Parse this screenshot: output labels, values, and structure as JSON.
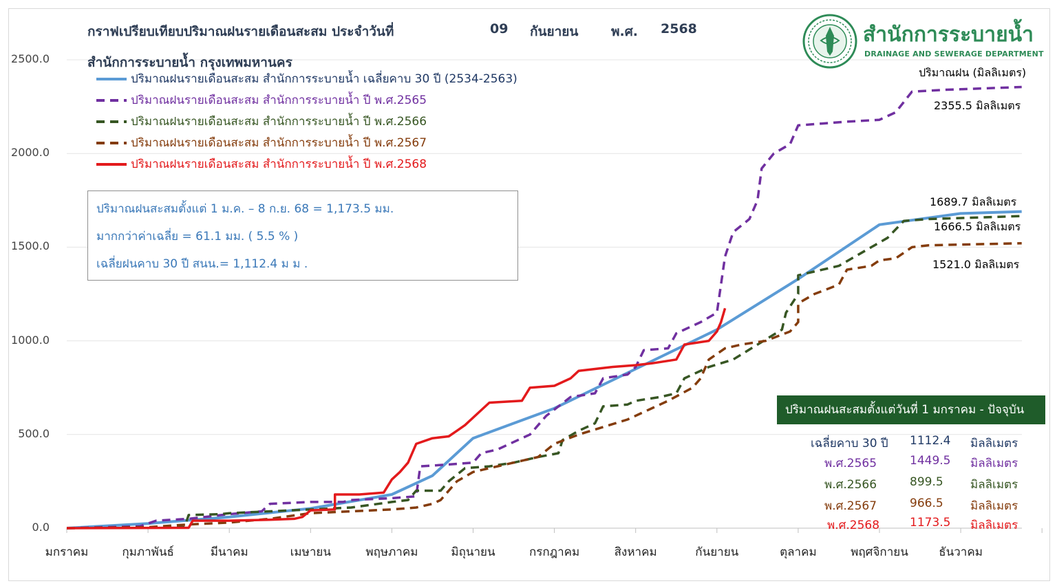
{
  "title": {
    "line1_prefix": "กราฟเปรียบเทียบปริมาณฝนรายเดือนสะสม ประจำวันที่",
    "day": "09",
    "month": "กันยายน",
    "era": "พ.ศ.",
    "year": "2568",
    "line2": "สำนักการระบายน้ำ กรุงเทพมหานคร"
  },
  "logo": {
    "name_th": "สำนักการระบายน้ำ",
    "name_en": "DRAINAGE AND SEWERAGE DEPARTMENT",
    "icon": "dds-seal-icon"
  },
  "unit_label": "ปริมาณฝน (มิลลิเมตร)",
  "legend": [
    {
      "label": "ปริมาณฝนรายเดือนสะสม สำนักการระบายน้ำ เฉลี่ยคาบ 30 ปี (2534-2563)",
      "color": "#5b9bd5",
      "style": "solid"
    },
    {
      "label": "ปริมาณฝนรายเดือนสะสม สำนักการระบายน้ำ ปี พ.ศ.2565",
      "color": "#7030a0",
      "style": "dashed"
    },
    {
      "label": "ปริมาณฝนรายเดือนสะสม สำนักการระบายน้ำ ปี พ.ศ.2566",
      "color": "#375623",
      "style": "dashed"
    },
    {
      "label": "ปริมาณฝนรายเดือนสะสม สำนักการระบายน้ำ ปี พ.ศ.2567",
      "color": "#843c0c",
      "style": "dashed"
    },
    {
      "label": "ปริมาณฝนรายเดือนสะสม สำนักการระบายน้ำ ปี พ.ศ.2568",
      "color": "#e31a1c",
      "style": "solid"
    }
  ],
  "infobox": {
    "line1": "ปริมาณฝนสะสมตั้งแต่ 1 ม.ค. – 8 ก.ย. 68 = 1,173.5 มม.",
    "line2": "มากกว่าค่าเฉลี่ย = 61.1 มม. ( 5.5 % )",
    "line3": "เฉลี่ยฝนคาบ 30 ปี สนน.= 1,112.4 ม ม ."
  },
  "end_labels": [
    {
      "text": "2355.5 มิลลิเมตร",
      "color": "#7030a0"
    },
    {
      "text": "1689.7 มิลลิเมตร",
      "color": "#1f3864"
    },
    {
      "text": "1666.5 มิลลิเมตร",
      "color": "#375623"
    },
    {
      "text": "1521.0 มิลลิเมตร",
      "color": "#843c0c"
    }
  ],
  "summary": {
    "header": "ปริมาณฝนสะสมตั้งแต่วันที่ 1 มกราคม - ปัจจุบัน",
    "rows": [
      {
        "label": "เฉลี่ยคาบ 30 ปี",
        "value": "1112.4",
        "unit": "มิลลิเมตร",
        "color": "#1f3864"
      },
      {
        "label": "พ.ศ.2565",
        "value": "1449.5",
        "unit": "มิลลิเมตร",
        "color": "#7030a0"
      },
      {
        "label": "พ.ศ.2566",
        "value": "899.5",
        "unit": "มิลลิเมตร",
        "color": "#375623"
      },
      {
        "label": "พ.ศ.2567",
        "value": "966.5",
        "unit": "มิลลิเมตร",
        "color": "#843c0c"
      },
      {
        "label": "พ.ศ.2568",
        "value": "1173.5",
        "unit": "มิลลิเมตร",
        "color": "#e31a1c"
      }
    ]
  },
  "chart_data": {
    "type": "line",
    "title": "กราฟเปรียบเทียบปริมาณฝนรายเดือนสะสม ประจำวันที่ 09 กันยายน พ.ศ. 2568",
    "ylabel": "ปริมาณฝน (มิลลิเมตร)",
    "ylim": [
      0,
      2500
    ],
    "yticks": [
      "0.0",
      "500.0",
      "1000.0",
      "1500.0",
      "2000.0",
      "2500.0"
    ],
    "grid": true,
    "legend_position": "top-left",
    "categories": [
      "มกราคม",
      "กุมภาพันธ์",
      "มีนาคม",
      "เมษายน",
      "พฤษภาคม",
      "มิถุนายน",
      "กรกฎาคม",
      "สิงหาคม",
      "กันยายน",
      "ตุลาคม",
      "พฤศจิกายน",
      "ธันวาคม"
    ],
    "x_unit": "month index (0 = 1 มกราคม, 12 = 31 ธันวาคม)",
    "series": [
      {
        "name": "ปริมาณฝนรายเดือนสะสม สำนักการระบายน้ำ เฉลี่ยคาบ 30 ปี (2534-2563)",
        "color": "#5b9bd5",
        "dash": "",
        "points": [
          [
            0,
            0
          ],
          [
            1,
            25
          ],
          [
            2,
            60
          ],
          [
            3,
            105
          ],
          [
            4,
            180
          ],
          [
            4.5,
            280
          ],
          [
            5,
            480
          ],
          [
            6,
            640
          ],
          [
            7,
            850
          ],
          [
            8,
            1060
          ],
          [
            9,
            1330
          ],
          [
            10,
            1620
          ],
          [
            11,
            1680
          ],
          [
            11.75,
            1690
          ]
        ]
      },
      {
        "name": "ปริมาณฝนรายเดือนสะสม สำนักการระบายน้ำ ปี พ.ศ.2565",
        "color": "#7030a0",
        "dash": "12,8",
        "points": [
          [
            0,
            0
          ],
          [
            0.9,
            10
          ],
          [
            1.1,
            40
          ],
          [
            1.5,
            50
          ],
          [
            2,
            75
          ],
          [
            2.4,
            90
          ],
          [
            2.5,
            130
          ],
          [
            3,
            140
          ],
          [
            3.4,
            140
          ],
          [
            3.5,
            150
          ],
          [
            4,
            160
          ],
          [
            4.3,
            170
          ],
          [
            4.35,
            330
          ],
          [
            4.7,
            340
          ],
          [
            5,
            350
          ],
          [
            5.1,
            400
          ],
          [
            5.3,
            420
          ],
          [
            5.5,
            460
          ],
          [
            5.7,
            500
          ],
          [
            5.9,
            600
          ],
          [
            6.2,
            700
          ],
          [
            6.5,
            720
          ],
          [
            6.6,
            800
          ],
          [
            6.9,
            820
          ],
          [
            7,
            860
          ],
          [
            7.1,
            950
          ],
          [
            7.4,
            960
          ],
          [
            7.5,
            1040
          ],
          [
            7.8,
            1100
          ],
          [
            8,
            1150
          ],
          [
            8.05,
            1300
          ],
          [
            8.1,
            1450
          ],
          [
            8.2,
            1580
          ],
          [
            8.4,
            1650
          ],
          [
            8.5,
            1750
          ],
          [
            8.55,
            1920
          ],
          [
            8.7,
            2000
          ],
          [
            8.9,
            2050
          ],
          [
            9,
            2150
          ],
          [
            9.3,
            2160
          ],
          [
            9.6,
            2170
          ],
          [
            10,
            2180
          ],
          [
            10.2,
            2220
          ],
          [
            10.4,
            2330
          ],
          [
            10.8,
            2340
          ],
          [
            11.75,
            2355
          ]
        ]
      },
      {
        "name": "ปริมาณฝนรายเดือนสะสม สำนักการระบายน้ำ ปี พ.ศ.2566",
        "color": "#375623",
        "dash": "12,8",
        "points": [
          [
            0,
            0
          ],
          [
            1.2,
            5
          ],
          [
            1.45,
            5
          ],
          [
            1.5,
            70
          ],
          [
            1.9,
            75
          ],
          [
            2,
            80
          ],
          [
            2.5,
            90
          ],
          [
            3,
            100
          ],
          [
            3.5,
            110
          ],
          [
            4,
            140
          ],
          [
            4.2,
            150
          ],
          [
            4.3,
            200
          ],
          [
            4.6,
            200
          ],
          [
            4.7,
            250
          ],
          [
            4.9,
            320
          ],
          [
            5.2,
            330
          ],
          [
            5.5,
            350
          ],
          [
            5.8,
            380
          ],
          [
            6.05,
            400
          ],
          [
            6.1,
            470
          ],
          [
            6.3,
            520
          ],
          [
            6.5,
            560
          ],
          [
            6.6,
            650
          ],
          [
            6.9,
            660
          ],
          [
            7,
            680
          ],
          [
            7.3,
            700
          ],
          [
            7.5,
            720
          ],
          [
            7.6,
            800
          ],
          [
            7.9,
            860
          ],
          [
            8.2,
            900
          ],
          [
            8.5,
            980
          ],
          [
            8.8,
            1060
          ],
          [
            8.85,
            1150
          ],
          [
            9,
            1250
          ],
          [
            9,
            1350
          ],
          [
            9.3,
            1380
          ],
          [
            9.5,
            1400
          ],
          [
            9.7,
            1450
          ],
          [
            9.9,
            1500
          ],
          [
            10.1,
            1550
          ],
          [
            10.3,
            1640
          ],
          [
            10.6,
            1650
          ],
          [
            11.75,
            1666
          ]
        ]
      },
      {
        "name": "ปริมาณฝนรายเดือนสะสม สำนักการระบายน้ำ ปี พ.ศ.2567",
        "color": "#843c0c",
        "dash": "12,8",
        "points": [
          [
            0,
            0
          ],
          [
            1,
            5
          ],
          [
            1.5,
            20
          ],
          [
            2,
            30
          ],
          [
            2.5,
            50
          ],
          [
            3,
            80
          ],
          [
            3.5,
            90
          ],
          [
            4,
            100
          ],
          [
            4.3,
            110
          ],
          [
            4.5,
            130
          ],
          [
            4.6,
            150
          ],
          [
            4.8,
            250
          ],
          [
            5,
            300
          ],
          [
            5.2,
            320
          ],
          [
            5.5,
            350
          ],
          [
            5.8,
            380
          ],
          [
            6,
            450
          ],
          [
            6.3,
            500
          ],
          [
            6.6,
            540
          ],
          [
            6.9,
            580
          ],
          [
            7.1,
            620
          ],
          [
            7.4,
            680
          ],
          [
            7.7,
            750
          ],
          [
            7.8,
            800
          ],
          [
            7.9,
            900
          ],
          [
            8.1,
            960
          ],
          [
            8.3,
            980
          ],
          [
            8.6,
            1000
          ],
          [
            8.9,
            1050
          ],
          [
            9,
            1100
          ],
          [
            9,
            1200
          ],
          [
            9.2,
            1250
          ],
          [
            9.5,
            1300
          ],
          [
            9.6,
            1380
          ],
          [
            9.9,
            1400
          ],
          [
            10,
            1430
          ],
          [
            10.2,
            1440
          ],
          [
            10.4,
            1500
          ],
          [
            10.6,
            1510
          ],
          [
            11.75,
            1521
          ]
        ]
      },
      {
        "name": "ปริมาณฝนรายเดือนสะสม สำนักการระบายน้ำ ปี พ.ศ.2568",
        "color": "#e31a1c",
        "dash": "",
        "points": [
          [
            0,
            0
          ],
          [
            1.5,
            2
          ],
          [
            1.55,
            40
          ],
          [
            2,
            40
          ],
          [
            2.5,
            45
          ],
          [
            2.8,
            50
          ],
          [
            2.9,
            60
          ],
          [
            3,
            95
          ],
          [
            3.3,
            100
          ],
          [
            3.3,
            180
          ],
          [
            3.6,
            180
          ],
          [
            3.9,
            190
          ],
          [
            4,
            260
          ],
          [
            4.1,
            300
          ],
          [
            4.2,
            350
          ],
          [
            4.3,
            450
          ],
          [
            4.5,
            480
          ],
          [
            4.7,
            490
          ],
          [
            4.8,
            520
          ],
          [
            4.9,
            550
          ],
          [
            5.1,
            630
          ],
          [
            5.2,
            670
          ],
          [
            5.6,
            680
          ],
          [
            5.7,
            750
          ],
          [
            6,
            760
          ],
          [
            6.2,
            800
          ],
          [
            6.3,
            840
          ],
          [
            6.7,
            860
          ],
          [
            7,
            870
          ],
          [
            7.2,
            880
          ],
          [
            7.5,
            900
          ],
          [
            7.6,
            980
          ],
          [
            7.9,
            1000
          ],
          [
            8,
            1050
          ],
          [
            8.05,
            1100
          ],
          [
            8.1,
            1173.5
          ]
        ]
      }
    ]
  }
}
